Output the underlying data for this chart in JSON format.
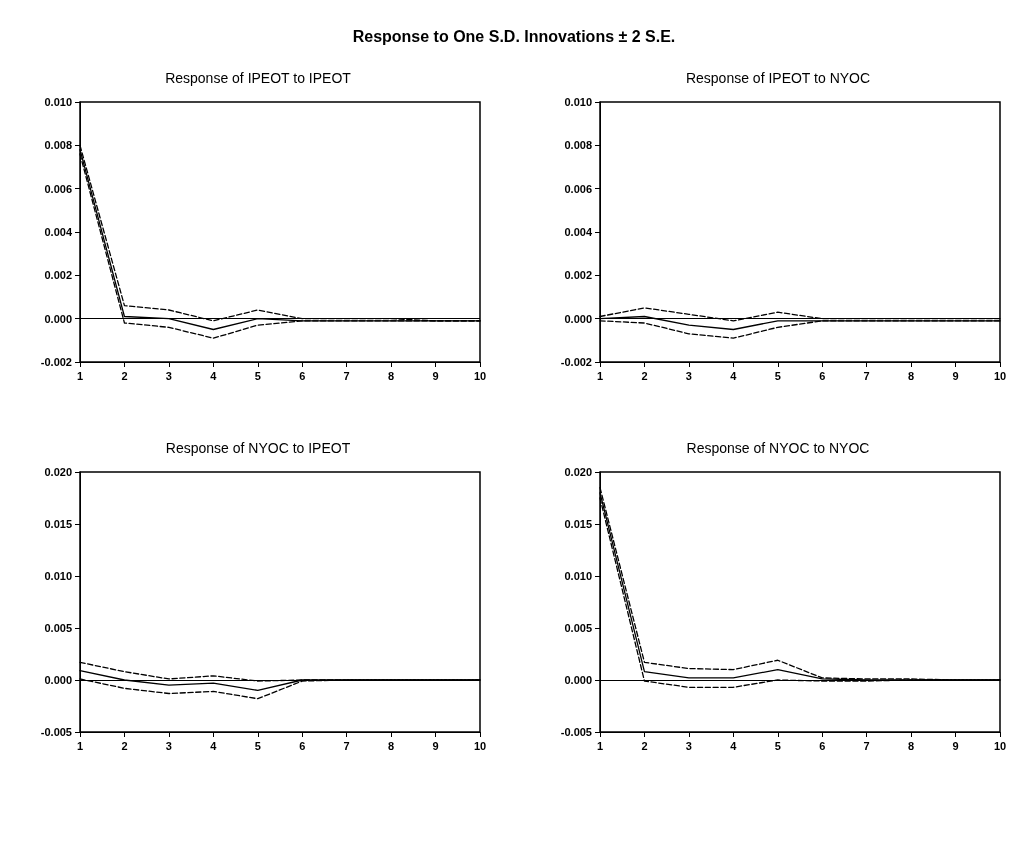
{
  "chart_data": [
    {
      "type": "line",
      "title": "Response of IPEOT to IPEOT",
      "annotations": [
        "Response to One S.D. Innovations ± 2 S.E."
      ],
      "x": [
        1,
        2,
        3,
        4,
        5,
        6,
        7,
        8,
        9,
        10
      ],
      "xlim": [
        1,
        10
      ],
      "xticks": [
        1,
        2,
        3,
        4,
        5,
        6,
        7,
        8,
        9,
        10
      ],
      "ylim": [
        -0.002,
        0.01
      ],
      "yticks": [
        {
          "value": -0.002,
          "label": "-0.002"
        },
        {
          "value": 0,
          "label": "0.000"
        },
        {
          "value": 0.002,
          "label": "0.002"
        },
        {
          "value": 0.004,
          "label": "0.004"
        },
        {
          "value": 0.006,
          "label": "0.006"
        },
        {
          "value": 0.008,
          "label": "0.008"
        },
        {
          "value": 0.01,
          "label": "0.010"
        }
      ],
      "grid": false,
      "marker": "none",
      "ref_lines": [
        {
          "axis": "y",
          "value": 0,
          "color": "#000000",
          "line_style": "solid"
        }
      ],
      "series": [
        {
          "color": "#000000",
          "line_style": "solid",
          "values": [
            0.0078,
            0.0001,
            0.0,
            -0.0005,
            0.0,
            -0.0001,
            -0.0001,
            -0.0001,
            -0.0001,
            -0.0001
          ]
        },
        {
          "color": "#000000",
          "line_style": "dashed",
          "values": [
            0.008,
            0.0006,
            0.0004,
            -0.0001,
            0.0004,
            0.0,
            0.0,
            0.0,
            -0.0001,
            -0.0001
          ]
        },
        {
          "color": "#000000",
          "line_style": "dashed",
          "values": [
            0.0076,
            -0.0002,
            -0.0004,
            -0.0009,
            -0.0003,
            -0.0001,
            -0.0001,
            -0.0001,
            -0.0001,
            -0.0001
          ]
        }
      ]
    },
    {
      "type": "line",
      "title": "Response of IPEOT to NYOC",
      "x": [
        1,
        2,
        3,
        4,
        5,
        6,
        7,
        8,
        9,
        10
      ],
      "xlim": [
        1,
        10
      ],
      "xticks": [
        1,
        2,
        3,
        4,
        5,
        6,
        7,
        8,
        9,
        10
      ],
      "ylim": [
        -0.002,
        0.01
      ],
      "yticks": [
        {
          "value": -0.002,
          "label": "-0.002"
        },
        {
          "value": 0,
          "label": "0.000"
        },
        {
          "value": 0.002,
          "label": "0.002"
        },
        {
          "value": 0.004,
          "label": "0.004"
        },
        {
          "value": 0.006,
          "label": "0.006"
        },
        {
          "value": 0.008,
          "label": "0.008"
        },
        {
          "value": 0.01,
          "label": "0.010"
        }
      ],
      "grid": false,
      "marker": "none",
      "ref_lines": [
        {
          "axis": "y",
          "value": 0,
          "color": "#000000",
          "line_style": "solid"
        }
      ],
      "series": [
        {
          "color": "#000000",
          "line_style": "solid",
          "values": [
            0.0,
            0.0001,
            -0.0003,
            -0.0005,
            -0.0001,
            -0.0001,
            -0.0001,
            -0.0001,
            -0.0001,
            -0.0001
          ]
        },
        {
          "color": "#000000",
          "line_style": "dashed",
          "values": [
            0.0001,
            0.0005,
            0.0002,
            -0.0001,
            0.0003,
            0.0,
            0.0,
            0.0,
            0.0,
            0.0
          ]
        },
        {
          "color": "#000000",
          "line_style": "dashed",
          "values": [
            -0.0001,
            -0.0002,
            -0.0007,
            -0.0009,
            -0.0004,
            -0.0001,
            -0.0001,
            -0.0001,
            -0.0001,
            -0.0001
          ]
        }
      ]
    },
    {
      "type": "line",
      "title": "Response of NYOC to IPEOT",
      "x": [
        1,
        2,
        3,
        4,
        5,
        6,
        7,
        8,
        9,
        10
      ],
      "xlim": [
        1,
        10
      ],
      "xticks": [
        1,
        2,
        3,
        4,
        5,
        6,
        7,
        8,
        9,
        10
      ],
      "ylim": [
        -0.005,
        0.02
      ],
      "yticks": [
        {
          "value": -0.005,
          "label": "-0.005"
        },
        {
          "value": 0,
          "label": "0.000"
        },
        {
          "value": 0.005,
          "label": "0.005"
        },
        {
          "value": 0.01,
          "label": "0.010"
        },
        {
          "value": 0.015,
          "label": "0.015"
        },
        {
          "value": 0.02,
          "label": "0.020"
        }
      ],
      "grid": false,
      "marker": "none",
      "ref_lines": [
        {
          "axis": "y",
          "value": 0,
          "color": "#000000",
          "line_style": "solid"
        }
      ],
      "series": [
        {
          "color": "#000000",
          "line_style": "solid",
          "values": [
            0.0009,
            0.0,
            -0.0005,
            -0.0003,
            -0.001,
            0.0,
            0.0,
            0.0,
            0.0,
            0.0
          ]
        },
        {
          "color": "#000000",
          "line_style": "dashed",
          "values": [
            0.0017,
            0.0008,
            0.0001,
            0.0004,
            -0.0001,
            0.0,
            0.0,
            0.0,
            0.0,
            0.0
          ]
        },
        {
          "color": "#000000",
          "line_style": "dashed",
          "values": [
            0.0001,
            -0.0008,
            -0.0013,
            -0.0011,
            -0.0018,
            -0.0001,
            0.0,
            0.0,
            0.0,
            0.0
          ]
        }
      ]
    },
    {
      "type": "line",
      "title": "Response of NYOC to NYOC",
      "x": [
        1,
        2,
        3,
        4,
        5,
        6,
        7,
        8,
        9,
        10
      ],
      "xlim": [
        1,
        10
      ],
      "xticks": [
        1,
        2,
        3,
        4,
        5,
        6,
        7,
        8,
        9,
        10
      ],
      "ylim": [
        -0.005,
        0.02
      ],
      "yticks": [
        {
          "value": -0.005,
          "label": "-0.005"
        },
        {
          "value": 0,
          "label": "0.000"
        },
        {
          "value": 0.005,
          "label": "0.005"
        },
        {
          "value": 0.01,
          "label": "0.010"
        },
        {
          "value": 0.015,
          "label": "0.015"
        },
        {
          "value": 0.02,
          "label": "0.020"
        }
      ],
      "grid": false,
      "marker": "none",
      "ref_lines": [
        {
          "axis": "y",
          "value": 0,
          "color": "#000000",
          "line_style": "solid"
        }
      ],
      "series": [
        {
          "color": "#000000",
          "line_style": "solid",
          "values": [
            0.018,
            0.0008,
            0.0002,
            0.0002,
            0.001,
            0.0001,
            0.0,
            0.0,
            0.0,
            0.0
          ]
        },
        {
          "color": "#000000",
          "line_style": "dashed",
          "values": [
            0.0185,
            0.0017,
            0.0011,
            0.001,
            0.0019,
            0.0002,
            0.0001,
            0.0001,
            0.0,
            0.0
          ]
        },
        {
          "color": "#000000",
          "line_style": "dashed",
          "values": [
            0.0175,
            -0.0001,
            -0.0007,
            -0.0007,
            0.0,
            -0.0001,
            -0.0001,
            0.0,
            0.0,
            0.0
          ]
        }
      ]
    }
  ]
}
